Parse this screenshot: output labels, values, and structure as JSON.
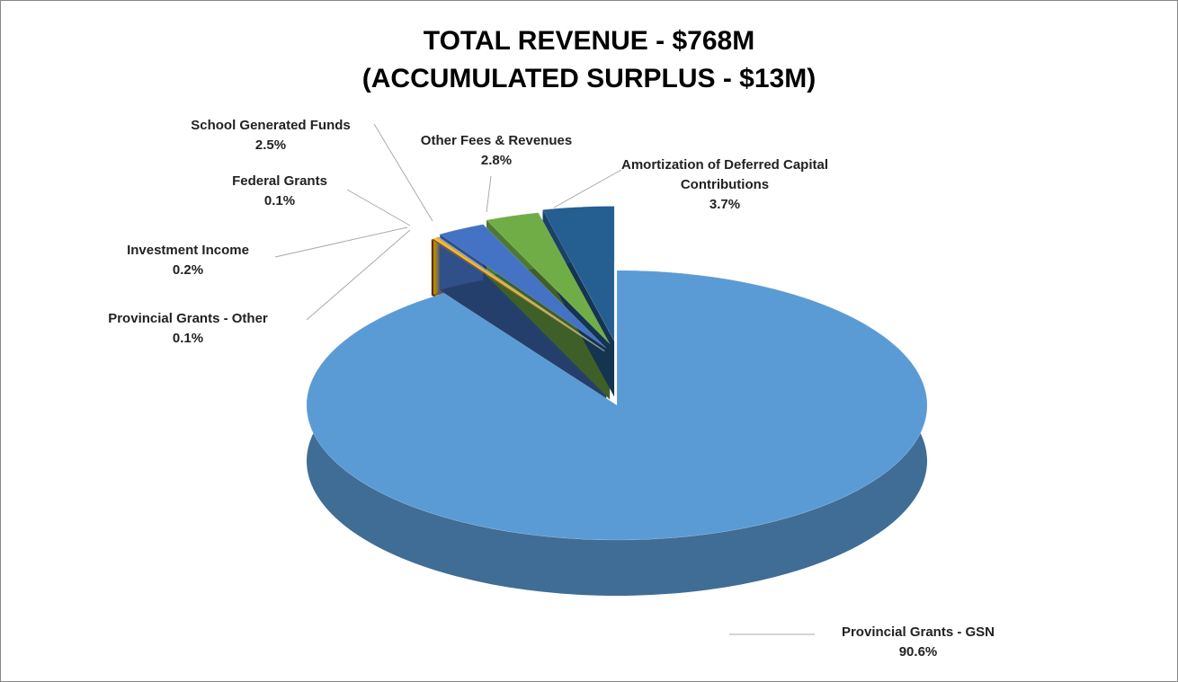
{
  "chart_data": {
    "type": "pie3d",
    "title": "TOTAL REVENUE - $768M",
    "subtitle": "(ACCUMULATED SURPLUS - $13M)",
    "categories": [
      "Provincial Grants - GSN",
      "Provincial Grants - Other",
      "Investment Income",
      "Federal Grants",
      "School Generated Funds",
      "Other Fees & Revenues",
      "Amortization of Deferred Capital Contributions"
    ],
    "values": [
      90.6,
      0.1,
      0.2,
      0.1,
      2.5,
      2.8,
      3.7
    ],
    "value_labels": [
      "90.6%",
      "0.1%",
      "0.2%",
      "0.1%",
      "2.5%",
      "2.8%",
      "3.7%"
    ],
    "colors": [
      "#5b9bd5",
      "#843c0c",
      "#ffc000",
      "#a5a5a5",
      "#4472c4",
      "#70ad47",
      "#255e91"
    ]
  }
}
